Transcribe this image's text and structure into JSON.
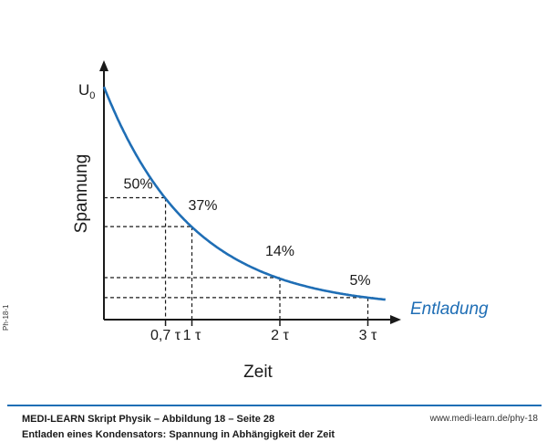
{
  "figure_id": "Ph-18-1",
  "footer": {
    "title": "MEDI-LEARN Skript Physik – Abbildung 18 – Seite 28",
    "subtitle": "Entladen eines Kondensators: Spannung in Abhängigkeit der Zeit",
    "url": "www.medi-learn.de/phy-18"
  },
  "chart_data": {
    "type": "line",
    "ylabel": "Spannung",
    "xlabel": "Zeit",
    "y_max_label": "U",
    "y_max_label_sub": "0",
    "series": [
      {
        "name": "Entladung",
        "function": "exp(-t/tau)",
        "color": "#1f6eb5"
      }
    ],
    "x_unit": "τ",
    "xlim": [
      0,
      3.2
    ],
    "ylim": [
      0,
      1
    ],
    "markers": [
      {
        "t": 0.7,
        "value": 0.5,
        "label": "50%",
        "tick": "0,7 τ"
      },
      {
        "t": 1.0,
        "value": 0.37,
        "label": "37%",
        "tick": "1 τ"
      },
      {
        "t": 2.0,
        "value": 0.14,
        "label": "14%",
        "tick": "2 τ"
      },
      {
        "t": 3.0,
        "value": 0.05,
        "label": "5%",
        "tick": "3 τ"
      }
    ],
    "grid": "dashed guide lines at marker points",
    "legend": "right of curve end"
  }
}
